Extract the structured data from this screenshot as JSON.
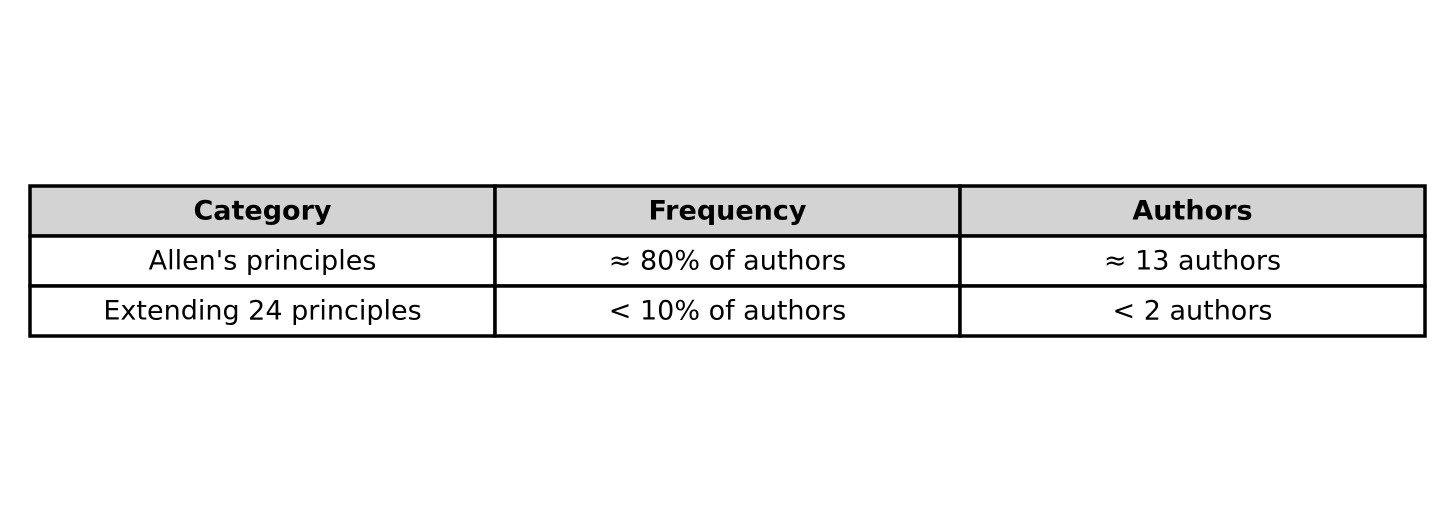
{
  "chart_data": {
    "type": "table",
    "columns": [
      "Category",
      "Frequency",
      "Authors"
    ],
    "rows": [
      [
        "Allen's principles",
        "≈ 80% of authors",
        "≈ 13 authors"
      ],
      [
        "Extending 24 principles",
        "< 10% of authors",
        "< 2 authors"
      ]
    ],
    "header_background": "#d3d3d3",
    "cell_background": "#ffffff",
    "border_color": "#000000",
    "text_color": "#000000"
  }
}
